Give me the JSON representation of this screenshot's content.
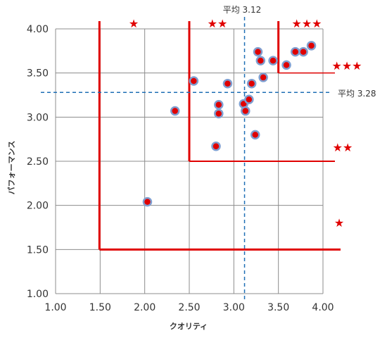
{
  "chart_data": {
    "type": "scatter",
    "xlabel": "クオリティ",
    "ylabel": "パフォーマンス",
    "xlim": [
      1.0,
      4.0
    ],
    "ylim": [
      1.0,
      4.0
    ],
    "x_ticks": [
      "1.00",
      "1.50",
      "2.00",
      "2.50",
      "3.00",
      "3.50",
      "4.00"
    ],
    "y_ticks": [
      "1.00",
      "1.50",
      "2.00",
      "2.50",
      "3.00",
      "3.50",
      "4.00"
    ],
    "grid": true,
    "points": [
      {
        "x": 2.03,
        "y": 2.04
      },
      {
        "x": 2.34,
        "y": 3.07
      },
      {
        "x": 2.55,
        "y": 3.41
      },
      {
        "x": 2.8,
        "y": 2.67
      },
      {
        "x": 2.83,
        "y": 3.04
      },
      {
        "x": 2.83,
        "y": 3.14
      },
      {
        "x": 2.93,
        "y": 3.38
      },
      {
        "x": 3.11,
        "y": 3.15
      },
      {
        "x": 3.13,
        "y": 3.07
      },
      {
        "x": 3.17,
        "y": 3.2
      },
      {
        "x": 3.2,
        "y": 3.38
      },
      {
        "x": 3.24,
        "y": 2.8
      },
      {
        "x": 3.27,
        "y": 3.74
      },
      {
        "x": 3.3,
        "y": 3.64
      },
      {
        "x": 3.33,
        "y": 3.45
      },
      {
        "x": 3.44,
        "y": 3.64
      },
      {
        "x": 3.59,
        "y": 3.59
      },
      {
        "x": 3.69,
        "y": 3.74
      },
      {
        "x": 3.78,
        "y": 3.74
      },
      {
        "x": 3.87,
        "y": 3.81
      }
    ],
    "averages": {
      "x": {
        "value": 3.12,
        "label": "平均 3.12"
      },
      "y": {
        "value": 3.28,
        "label": "平均 3.28"
      }
    },
    "thresholds": [
      1.5,
      2.5,
      3.5
    ],
    "rank_marks": [
      "★",
      "★★",
      "★★★"
    ],
    "marker_color": "#e00000",
    "marker_edge": "#7f9ed0",
    "threshold_color": "#e00000",
    "average_color": "#1f6fb5"
  }
}
